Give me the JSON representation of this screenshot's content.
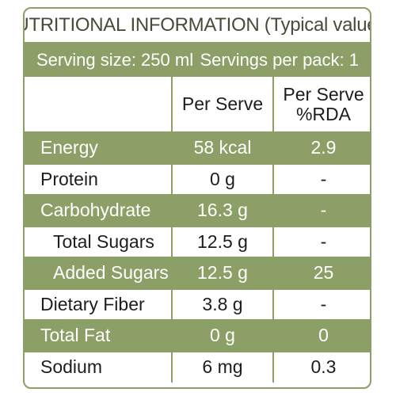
{
  "title": "NUTRITIONAL INFORMATION (Typical values)",
  "serving_size": "Serving size: 250 ml",
  "servings_per_pack": "Servings per pack: 1",
  "columns": {
    "nutrient": "",
    "per_serve": "Per Serve",
    "rda_line1": "Per Serve",
    "rda_line2": "%RDA"
  },
  "rows": [
    {
      "name": "Energy",
      "per_serve": "58 kcal",
      "rda": "2.9"
    },
    {
      "name": "Protein",
      "per_serve": "0 g",
      "rda": "-"
    },
    {
      "name": "Carbohydrate",
      "per_serve": "16.3 g",
      "rda": "-"
    },
    {
      "name": "Total Sugars",
      "per_serve": "12.5 g",
      "rda": "-"
    },
    {
      "name": "Added Sugars",
      "per_serve": "12.5 g",
      "rda": "25"
    },
    {
      "name": "Dietary Fiber",
      "per_serve": "3.8 g",
      "rda": "-"
    },
    {
      "name": "Total Fat",
      "per_serve": "0 g",
      "rda": "0"
    },
    {
      "name": "Sodium",
      "per_serve": "6 mg",
      "rda": "0.3"
    }
  ],
  "colors": {
    "accent": "#8c9f66",
    "text": "#1d1d1d",
    "shaded_text": "#ffffff"
  }
}
